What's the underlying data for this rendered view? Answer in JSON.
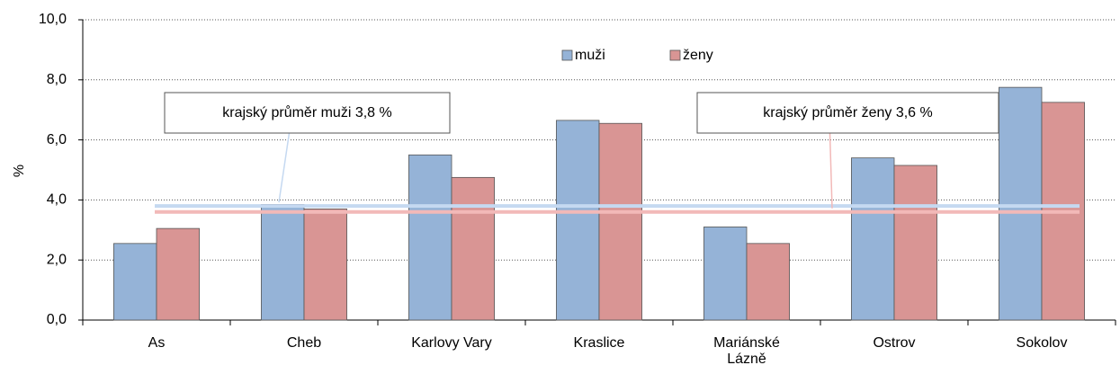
{
  "chart_data": {
    "type": "bar",
    "ylabel": "%",
    "categories": [
      "As",
      "Cheb",
      "Karlovy Vary",
      "Kraslice",
      "Mariánské Lázně",
      "Ostrov",
      "Sokolov"
    ],
    "series": [
      {
        "name": "muži",
        "color": "#95b3d7",
        "values": [
          2.55,
          3.85,
          5.5,
          6.65,
          3.1,
          5.4,
          7.75
        ]
      },
      {
        "name": "ženy",
        "color": "#d99594",
        "values": [
          3.05,
          3.7,
          4.75,
          6.55,
          2.55,
          5.15,
          7.25
        ]
      }
    ],
    "ylim": [
      0,
      10
    ],
    "yticks": [
      {
        "value": 0,
        "label": "0,0"
      },
      {
        "value": 2,
        "label": "2,0"
      },
      {
        "value": 4,
        "label": "4,0"
      },
      {
        "value": 6,
        "label": "6,0"
      },
      {
        "value": 8,
        "label": "8,0"
      },
      {
        "value": 10,
        "label": "10,0"
      }
    ],
    "grid": true,
    "legend": "top",
    "annotations": [
      {
        "text": "krajský průměr muži 3,8 %",
        "value": 3.8,
        "color": "#c5d9f1"
      },
      {
        "text": "krajský průměr ženy 3,6 %",
        "value": 3.6,
        "color": "#f2b9b8"
      }
    ]
  }
}
